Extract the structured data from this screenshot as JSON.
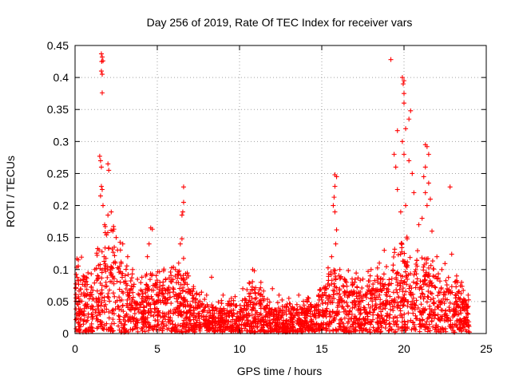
{
  "chart_data": {
    "type": "scatter",
    "title": "Day 256 of 2019, Rate Of TEC Index for receiver vars",
    "xlabel": "GPS time / hours",
    "ylabel": "ROTI / TECUs",
    "xlim": [
      0,
      25
    ],
    "ylim": [
      0,
      0.45
    ],
    "xticks": [
      0,
      5,
      10,
      15,
      20,
      25
    ],
    "xtick_labels": [
      "0",
      "5",
      "10",
      "15",
      "20",
      "25"
    ],
    "yticks": [
      0,
      0.05,
      0.1,
      0.15,
      0.2,
      0.25,
      0.3,
      0.35,
      0.4,
      0.45
    ],
    "ytick_labels": [
      "0",
      "0.05",
      "0.1",
      "0.15",
      "0.2",
      "0.25",
      "0.3",
      "0.35",
      "0.4",
      "0.45"
    ],
    "grid": true,
    "marker": "plus",
    "color": "#ff0000",
    "series": [
      {
        "name": "ROTI",
        "note": "dense background cloud 0-24h mostly 0-0.08 TECU; representative peaks listed below",
        "points": [
          [
            1.6,
            0.437
          ],
          [
            1.65,
            0.432
          ],
          [
            1.62,
            0.425
          ],
          [
            1.7,
            0.426
          ],
          [
            1.6,
            0.41
          ],
          [
            1.65,
            0.405
          ],
          [
            1.65,
            0.376
          ],
          [
            1.5,
            0.277
          ],
          [
            1.55,
            0.27
          ],
          [
            1.6,
            0.26
          ],
          [
            2.0,
            0.265
          ],
          [
            2.05,
            0.255
          ],
          [
            1.6,
            0.23
          ],
          [
            1.65,
            0.225
          ],
          [
            1.55,
            0.215
          ],
          [
            1.7,
            0.2
          ],
          [
            2.2,
            0.19
          ],
          [
            2.0,
            0.185
          ],
          [
            1.8,
            0.17
          ],
          [
            2.3,
            0.16
          ],
          [
            2.5,
            0.15
          ],
          [
            2.9,
            0.14
          ],
          [
            3.2,
            0.12
          ],
          [
            0.2,
            0.115
          ],
          [
            0.5,
            0.09
          ],
          [
            1.2,
            0.1
          ],
          [
            3.5,
            0.1
          ],
          [
            3.9,
            0.06
          ],
          [
            4.3,
            0.09
          ],
          [
            4.6,
            0.165
          ],
          [
            4.7,
            0.163
          ],
          [
            4.5,
            0.14
          ],
          [
            4.4,
            0.12
          ],
          [
            5.0,
            0.08
          ],
          [
            5.5,
            0.085
          ],
          [
            6.6,
            0.229
          ],
          [
            6.6,
            0.205
          ],
          [
            6.55,
            0.19
          ],
          [
            6.5,
            0.185
          ],
          [
            6.5,
            0.148
          ],
          [
            6.4,
            0.14
          ],
          [
            6.3,
            0.11
          ],
          [
            6.9,
            0.09
          ],
          [
            7.2,
            0.07
          ],
          [
            8.3,
            0.088
          ],
          [
            8.0,
            0.06
          ],
          [
            9.0,
            0.06
          ],
          [
            9.5,
            0.055
          ],
          [
            10.2,
            0.07
          ],
          [
            10.8,
            0.1
          ],
          [
            10.9,
            0.098
          ],
          [
            11.3,
            0.08
          ],
          [
            12.0,
            0.07
          ],
          [
            12.4,
            0.06
          ],
          [
            13.0,
            0.055
          ],
          [
            13.6,
            0.06
          ],
          [
            14.2,
            0.055
          ],
          [
            14.8,
            0.06
          ],
          [
            15.8,
            0.248
          ],
          [
            15.9,
            0.245
          ],
          [
            15.8,
            0.23
          ],
          [
            15.75,
            0.213
          ],
          [
            15.7,
            0.2
          ],
          [
            15.8,
            0.19
          ],
          [
            15.9,
            0.162
          ],
          [
            15.85,
            0.14
          ],
          [
            15.6,
            0.12
          ],
          [
            16.1,
            0.1
          ],
          [
            16.5,
            0.08
          ],
          [
            17.0,
            0.08
          ],
          [
            17.5,
            0.085
          ],
          [
            18.0,
            0.1
          ],
          [
            18.5,
            0.11
          ],
          [
            18.8,
            0.13
          ],
          [
            19.2,
            0.428
          ],
          [
            19.9,
            0.4
          ],
          [
            20.0,
            0.395
          ],
          [
            19.95,
            0.39
          ],
          [
            20.0,
            0.375
          ],
          [
            20.0,
            0.36
          ],
          [
            20.4,
            0.348
          ],
          [
            20.3,
            0.335
          ],
          [
            19.6,
            0.317
          ],
          [
            20.1,
            0.32
          ],
          [
            19.4,
            0.28
          ],
          [
            19.9,
            0.3
          ],
          [
            20.0,
            0.28
          ],
          [
            20.3,
            0.27
          ],
          [
            19.5,
            0.26
          ],
          [
            20.5,
            0.25
          ],
          [
            20.6,
            0.22
          ],
          [
            19.6,
            0.225
          ],
          [
            20.1,
            0.2
          ],
          [
            19.8,
            0.19
          ],
          [
            21.3,
            0.295
          ],
          [
            21.4,
            0.292
          ],
          [
            21.5,
            0.28
          ],
          [
            21.3,
            0.26
          ],
          [
            21.2,
            0.245
          ],
          [
            21.5,
            0.235
          ],
          [
            21.3,
            0.22
          ],
          [
            21.6,
            0.21
          ],
          [
            21.4,
            0.2
          ],
          [
            21.1,
            0.18
          ],
          [
            21.7,
            0.16
          ],
          [
            20.9,
            0.17
          ],
          [
            22.0,
            0.12
          ],
          [
            22.3,
            0.1
          ],
          [
            22.8,
            0.229
          ],
          [
            22.9,
            0.124
          ],
          [
            23.2,
            0.09
          ],
          [
            23.5,
            0.08
          ],
          [
            23.9,
            0.06
          ]
        ]
      }
    ]
  }
}
